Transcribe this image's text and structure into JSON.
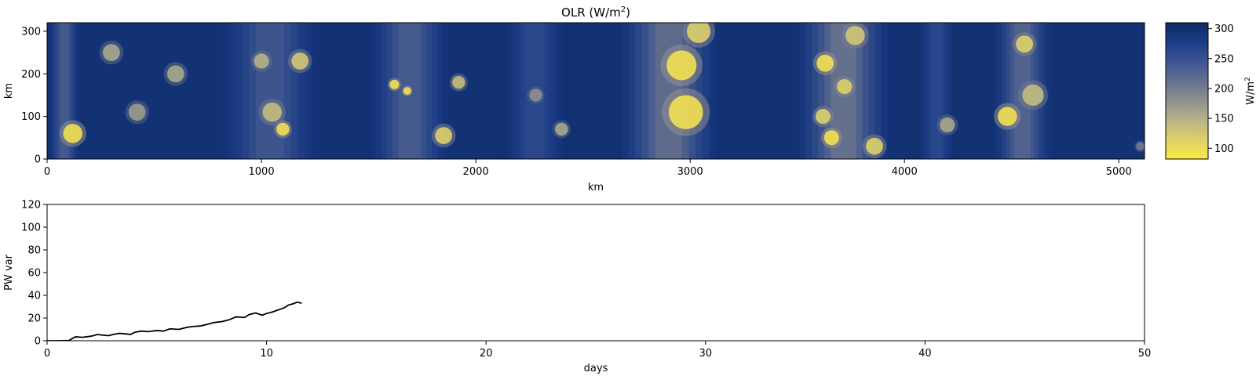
{
  "chart_data": [
    {
      "type": "heatmap",
      "title_main": "OLR (W/m",
      "title_sup": "2",
      "title_end": ")",
      "xlabel": "km",
      "ylabel": "km",
      "xlim": [
        0,
        5120
      ],
      "ylim": [
        0,
        320
      ],
      "x_ticks": [
        0,
        1000,
        2000,
        3000,
        4000,
        5000
      ],
      "y_ticks": [
        0,
        100,
        200,
        300
      ],
      "colorbar": {
        "label_main": "W/m",
        "label_sup": "2",
        "range": [
          82,
          310
        ],
        "ticks": [
          100,
          150,
          200,
          250,
          300
        ],
        "colors": [
          "#fde945",
          "#ddd06a",
          "#b8b386",
          "#8f8f8e",
          "#64708f",
          "#3c5592",
          "#1c3c88",
          "#0d2b64"
        ]
      },
      "convective_bands_km": [
        {
          "x0": 0,
          "x1": 160,
          "intensity": 0.65
        },
        {
          "x0": 780,
          "x1": 1300,
          "intensity": 0.6
        },
        {
          "x0": 1480,
          "x1": 1900,
          "intensity": 0.65
        },
        {
          "x0": 2100,
          "x1": 2450,
          "intensity": 0.45
        },
        {
          "x0": 2650,
          "x1": 3150,
          "intensity": 0.85
        },
        {
          "x0": 3480,
          "x1": 3950,
          "intensity": 0.9
        },
        {
          "x0": 4050,
          "x1": 4250,
          "intensity": 0.45
        },
        {
          "x0": 4400,
          "x1": 4700,
          "intensity": 0.75
        }
      ],
      "cells_km": [
        [
          120,
          60,
          45,
          1.0
        ],
        [
          2960,
          220,
          70,
          1.0
        ],
        [
          2980,
          110,
          80,
          1.0
        ],
        [
          3040,
          300,
          55,
          0.9
        ],
        [
          3630,
          225,
          40,
          1.0
        ],
        [
          3660,
          50,
          35,
          1.0
        ],
        [
          3860,
          30,
          40,
          0.9
        ],
        [
          3720,
          170,
          35,
          0.9
        ],
        [
          4480,
          100,
          45,
          1.0
        ],
        [
          4560,
          270,
          40,
          0.9
        ],
        [
          4600,
          150,
          50,
          0.8
        ],
        [
          1620,
          175,
          22,
          1.0
        ],
        [
          1680,
          160,
          18,
          1.0
        ],
        [
          1850,
          55,
          40,
          0.9
        ],
        [
          1100,
          70,
          30,
          1.0
        ],
        [
          1050,
          110,
          45,
          0.8
        ],
        [
          1180,
          230,
          40,
          0.85
        ],
        [
          1000,
          230,
          35,
          0.75
        ],
        [
          1920,
          180,
          30,
          0.8
        ],
        [
          600,
          200,
          40,
          0.7
        ],
        [
          420,
          110,
          40,
          0.65
        ],
        [
          2400,
          70,
          30,
          0.7
        ],
        [
          3620,
          100,
          35,
          0.9
        ],
        [
          3770,
          290,
          45,
          0.85
        ],
        [
          4200,
          80,
          35,
          0.7
        ],
        [
          300,
          250,
          40,
          0.7
        ],
        [
          5100,
          30,
          20,
          0.5
        ],
        [
          2280,
          150,
          30,
          0.6
        ]
      ]
    },
    {
      "type": "line",
      "xlabel": "days",
      "ylabel": "PW var",
      "xlim": [
        0,
        50
      ],
      "ylim": [
        0,
        120
      ],
      "x_ticks": [
        0,
        10,
        20,
        30,
        40,
        50
      ],
      "y_ticks": [
        0,
        20,
        40,
        60,
        80,
        100,
        120
      ],
      "series": [
        {
          "color": "#000000",
          "x": [
            0,
            0.5,
            1.0,
            1.1,
            1.3,
            1.6,
            2.0,
            2.3,
            2.5,
            2.8,
            3.0,
            3.3,
            3.6,
            3.8,
            4.0,
            4.3,
            4.6,
            5.0,
            5.3,
            5.6,
            6.0,
            6.3,
            6.6,
            7.0,
            7.3,
            7.6,
            8.0,
            8.3,
            8.6,
            9.0,
            9.2,
            9.5,
            9.8,
            10.0,
            10.3,
            10.5,
            10.8,
            11.0,
            11.2,
            11.4,
            11.6
          ],
          "y": [
            0,
            0,
            0.2,
            1.5,
            3.5,
            3.0,
            4.0,
            5.5,
            5.0,
            4.5,
            5.5,
            6.5,
            6.0,
            5.5,
            7.5,
            8.5,
            8.0,
            9.0,
            8.5,
            10.5,
            10.0,
            11.5,
            12.5,
            13.0,
            14.5,
            16.0,
            17.0,
            18.5,
            21.0,
            20.5,
            23.0,
            24.5,
            22.5,
            24.0,
            25.5,
            27.0,
            29.0,
            31.5,
            32.5,
            34.0,
            33.0
          ]
        }
      ]
    }
  ]
}
